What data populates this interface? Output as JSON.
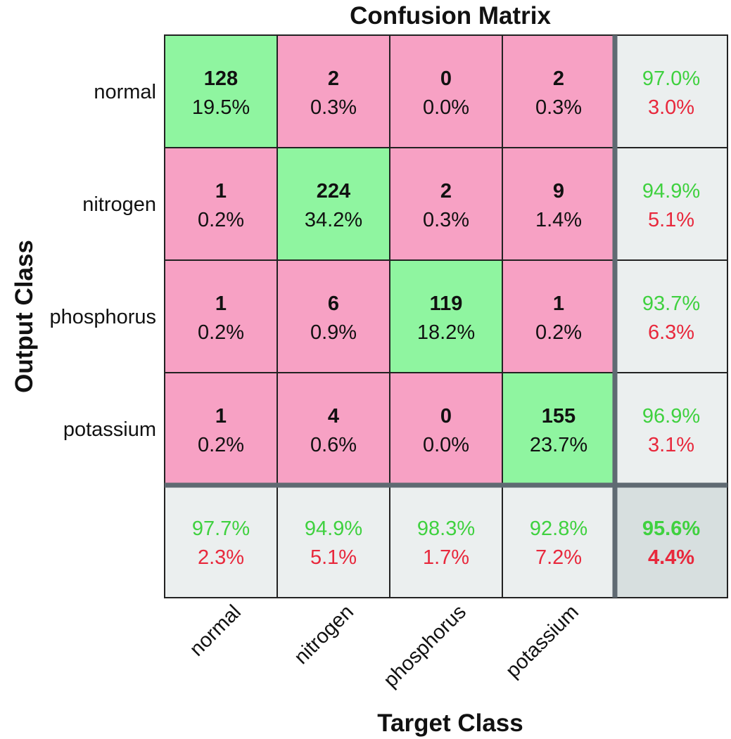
{
  "chart_data": {
    "type": "heatmap",
    "title": "Confusion Matrix",
    "xlabel": "Target Class",
    "ylabel": "Output Class",
    "classes": [
      "normal",
      "nitrogen",
      "phosphorus",
      "potassium"
    ],
    "counts": [
      [
        128,
        2,
        0,
        2
      ],
      [
        1,
        224,
        2,
        9
      ],
      [
        1,
        6,
        119,
        1
      ],
      [
        1,
        4,
        0,
        155
      ]
    ],
    "percents": [
      [
        "19.5%",
        "0.3%",
        "0.0%",
        "0.3%"
      ],
      [
        "0.2%",
        "34.2%",
        "0.3%",
        "1.4%"
      ],
      [
        "0.2%",
        "0.9%",
        "18.2%",
        "0.2%"
      ],
      [
        "0.2%",
        "0.6%",
        "0.0%",
        "23.7%"
      ]
    ],
    "row_summary": [
      {
        "correct": "97.0%",
        "error": "3.0%"
      },
      {
        "correct": "94.9%",
        "error": "5.1%"
      },
      {
        "correct": "93.7%",
        "error": "6.3%"
      },
      {
        "correct": "96.9%",
        "error": "3.1%"
      }
    ],
    "col_summary": [
      {
        "correct": "97.7%",
        "error": "2.3%"
      },
      {
        "correct": "94.9%",
        "error": "5.1%"
      },
      {
        "correct": "98.3%",
        "error": "1.7%"
      },
      {
        "correct": "92.8%",
        "error": "7.2%"
      }
    ],
    "overall": {
      "correct": "95.6%",
      "error": "4.4%"
    },
    "colors": {
      "diagonal": "#8ff5a0",
      "off_diagonal": "#f7a1c4",
      "summary": "#ebefef",
      "overall": "#d7dfdf",
      "correct_text": "#3fd13f",
      "error_text": "#e8283c",
      "separator": "#5f6a72",
      "grid": "#222222"
    }
  }
}
